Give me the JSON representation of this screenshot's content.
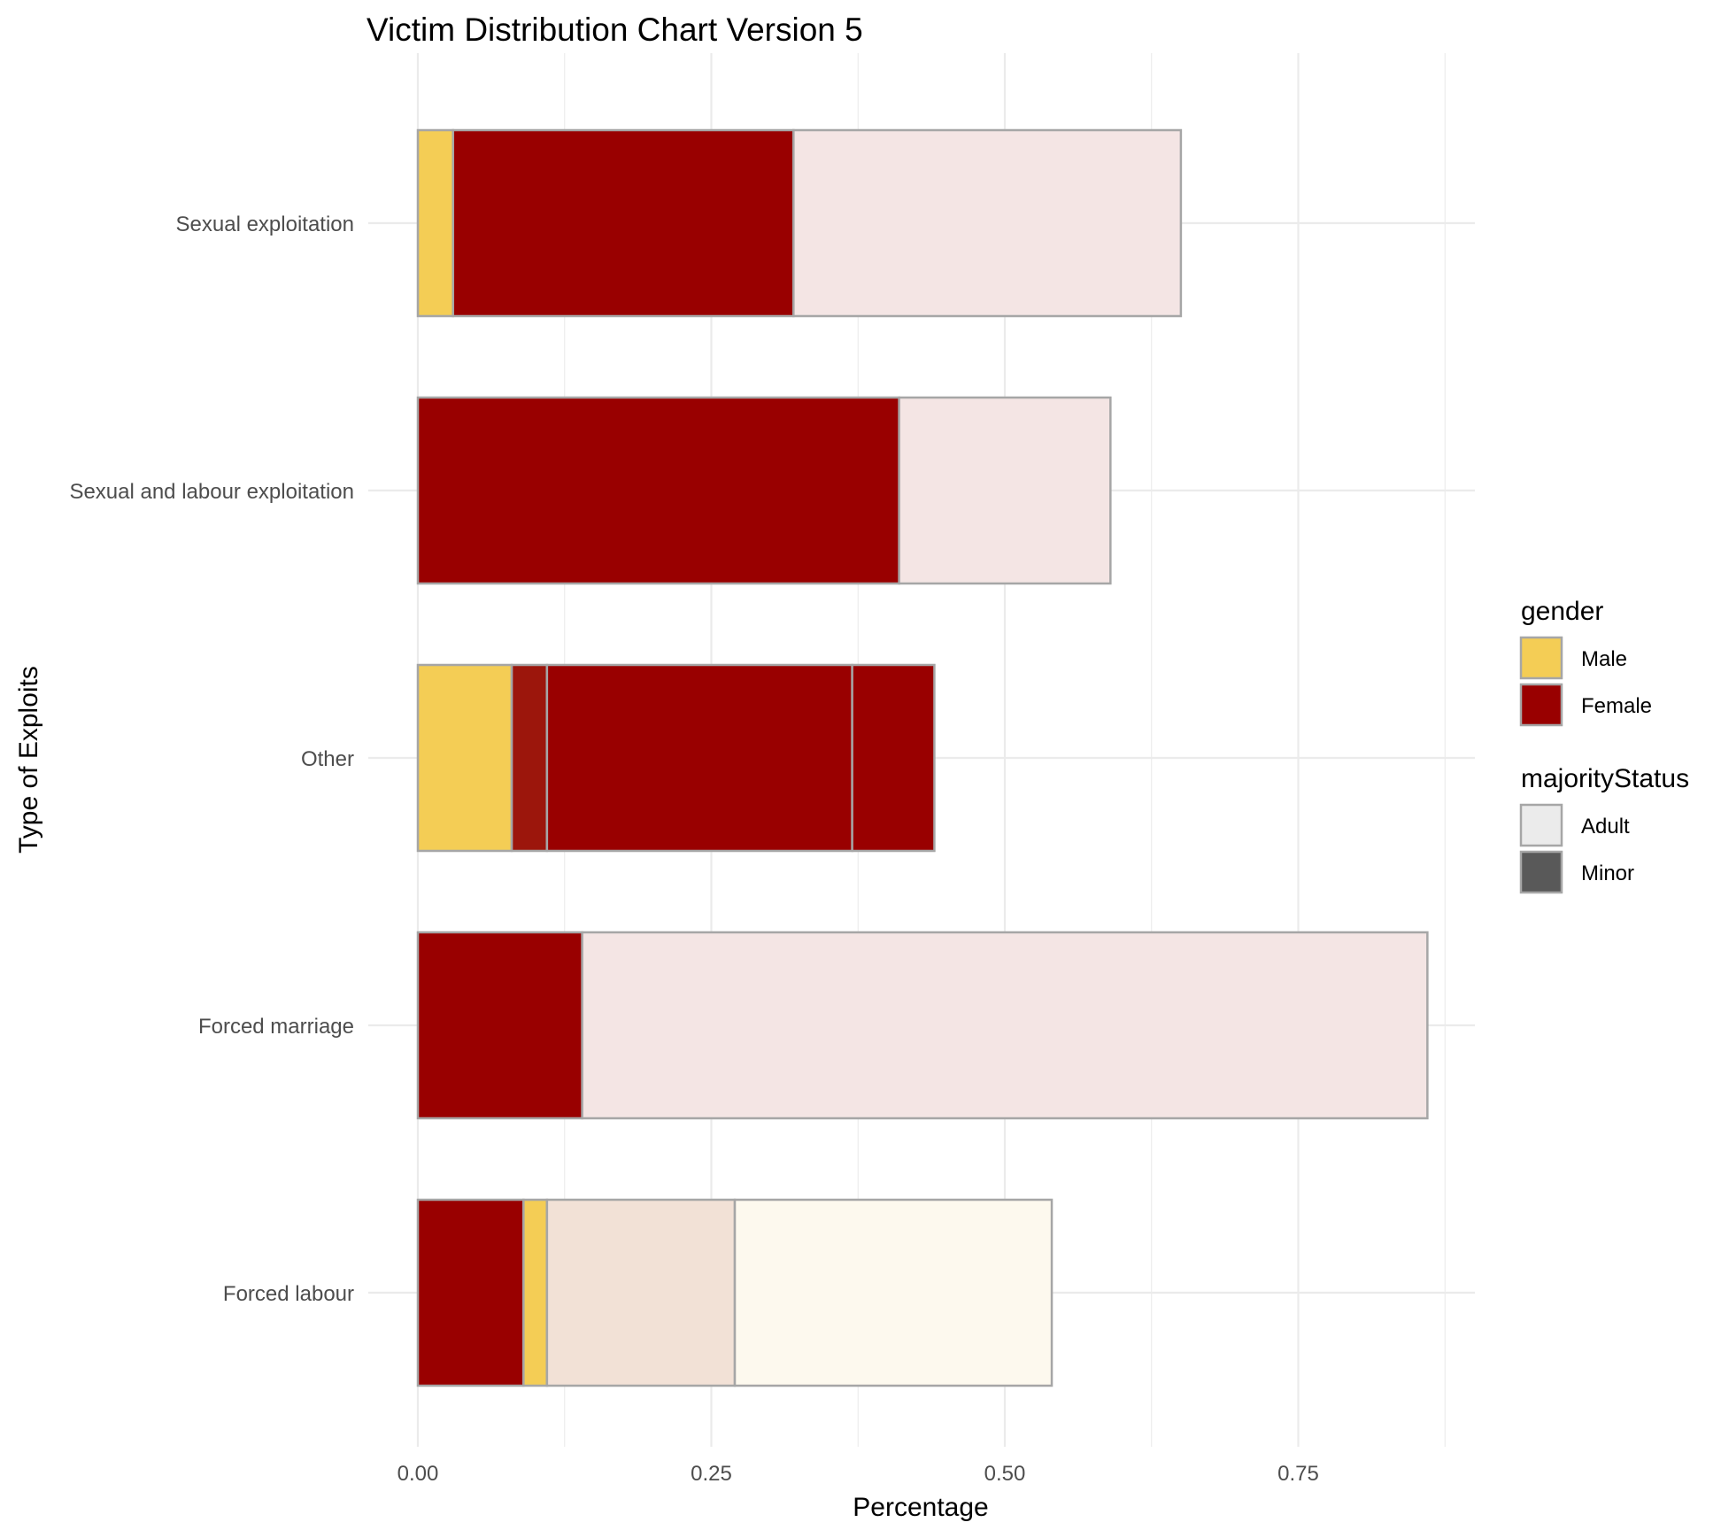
{
  "chart_data": {
    "type": "bar",
    "orientation": "horizontal",
    "stacked": true,
    "title": "Victim Distribution Chart Version 5",
    "xlabel": "Percentage",
    "ylabel": "Type of Exploits",
    "xlim": [
      0,
      0.9
    ],
    "x_ticks": [
      "0.00",
      "0.25",
      "0.50",
      "0.75"
    ],
    "grid": true,
    "legend_position": "right",
    "categories": [
      "Sexual exploitation",
      "Sexual and labour exploitation",
      "Other",
      "Forced marriage",
      "Forced labour"
    ],
    "colors": {
      "Male": "#f4cd55",
      "Female": "#990000",
      "Male Adult": "#fdf9ee",
      "Female Adult": "#f4e5e4",
      "Forced labour Adult": "#f2e1d6",
      "Other Female Minor": "#9c160c",
      "Adult": "#ebebeb",
      "Minor": "#595959",
      "outline": "#a6a6a6"
    },
    "bars": [
      {
        "category": "Sexual exploitation",
        "segments": [
          {
            "gender": "Male",
            "status": "Minor",
            "value": 0.03,
            "color": "#f4cd55"
          },
          {
            "gender": "Female",
            "status": "Minor",
            "value": 0.29,
            "color": "#990000"
          },
          {
            "gender": "Female",
            "status": "Adult",
            "value": 0.33,
            "color": "#f4e5e4"
          }
        ]
      },
      {
        "category": "Sexual and labour exploitation",
        "segments": [
          {
            "gender": "Female",
            "status": "Minor",
            "value": 0.41,
            "color": "#990000"
          },
          {
            "gender": "Female",
            "status": "Adult",
            "value": 0.18,
            "color": "#f4e5e4"
          }
        ]
      },
      {
        "category": "Other",
        "segments": [
          {
            "gender": "Male",
            "status": "Minor",
            "value": 0.08,
            "color": "#f4cd55"
          },
          {
            "gender": "Female",
            "status": "Minor",
            "value": 0.03,
            "color": "#9c160c"
          },
          {
            "gender": "Female",
            "status": "Minor",
            "value": 0.26,
            "color": "#990000"
          },
          {
            "gender": "Female",
            "status": "Minor",
            "value": 0.07,
            "color": "#990000"
          }
        ]
      },
      {
        "category": "Forced marriage",
        "segments": [
          {
            "gender": "Female",
            "status": "Minor",
            "value": 0.14,
            "color": "#990000"
          },
          {
            "gender": "Female",
            "status": "Adult",
            "value": 0.72,
            "color": "#f4e5e4"
          }
        ]
      },
      {
        "category": "Forced labour",
        "segments": [
          {
            "gender": "Female",
            "status": "Minor",
            "value": 0.09,
            "color": "#990000"
          },
          {
            "gender": "Male",
            "status": "Minor",
            "value": 0.02,
            "color": "#f4cd55"
          },
          {
            "gender": "Female",
            "status": "Adult",
            "value": 0.16,
            "color": "#f2e1d6"
          },
          {
            "gender": "Male",
            "status": "Adult",
            "value": 0.27,
            "color": "#fdf9ee"
          }
        ]
      }
    ],
    "legends": [
      {
        "title": "gender",
        "items": [
          {
            "label": "Male",
            "color": "#f4cd55"
          },
          {
            "label": "Female",
            "color": "#990000"
          }
        ]
      },
      {
        "title": "majorityStatus",
        "items": [
          {
            "label": "Adult",
            "color": "#ebebeb"
          },
          {
            "label": "Minor",
            "color": "#595959"
          }
        ]
      }
    ]
  }
}
